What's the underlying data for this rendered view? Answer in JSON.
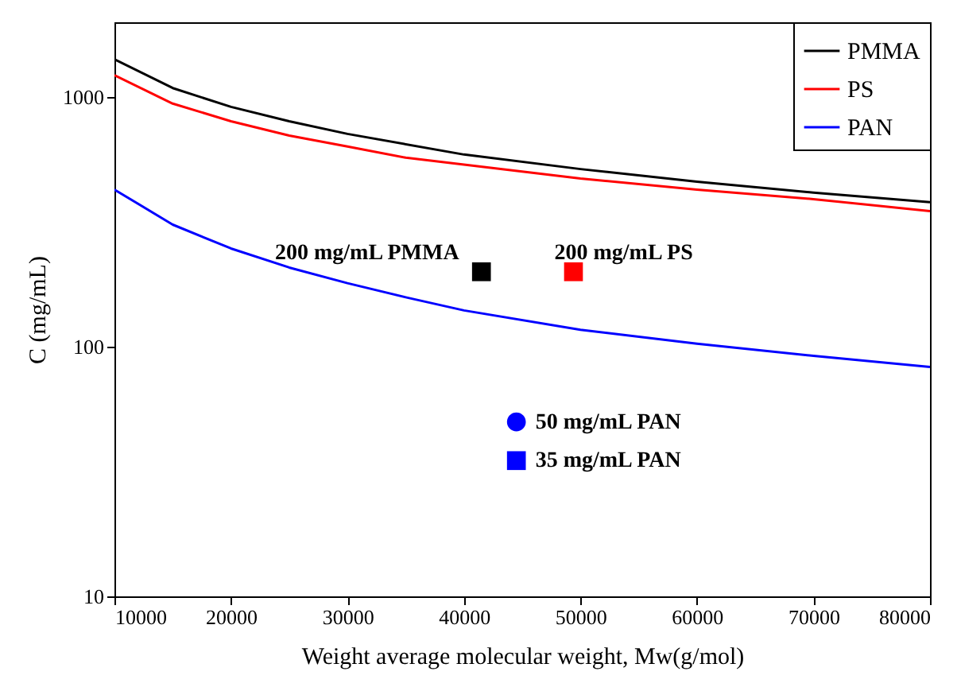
{
  "chart_data": {
    "type": "line",
    "xlabel": "Weight average molecular weight, Mw(g/mol)",
    "ylabel": "C (mg/mL)",
    "xlim": [
      10000,
      80000
    ],
    "xticks": [
      10000,
      20000,
      30000,
      40000,
      50000,
      60000,
      70000,
      80000
    ],
    "ylim": [
      10,
      2000
    ],
    "yticks": [
      10,
      100,
      1000
    ],
    "log": true,
    "legend": "top right",
    "series": [
      {
        "name": "PMMA",
        "color": "#000000",
        "x": [
          10000,
          15000,
          20000,
          25000,
          30000,
          40000,
          50000,
          60000,
          70000,
          80000
        ],
        "values": [
          1420,
          1090,
          916,
          802,
          714,
          590,
          516,
          459,
          415,
          380
        ]
      },
      {
        "name": "PS",
        "color": "#ff0000",
        "x": [
          10000,
          15000,
          20000,
          25000,
          30000,
          35000,
          50000,
          60000,
          70000,
          80000
        ],
        "values": [
          1227,
          944,
          802,
          703,
          635,
          573,
          473,
          427,
          391,
          350
        ]
      },
      {
        "name": "PAN",
        "color": "#0000ff",
        "x": [
          10000,
          15000,
          20000,
          25000,
          30000,
          35000,
          40000,
          50000,
          60000,
          70000,
          80000
        ],
        "values": [
          427,
          309,
          248,
          208,
          180,
          158,
          140,
          117,
          103,
          92,
          83
        ]
      },
      {
        "type": "scatter",
        "marker": "square",
        "color": "#000000",
        "x": [
          41500
        ],
        "values": [
          200
        ]
      },
      {
        "type": "scatter",
        "marker": "square",
        "color": "#ff0000",
        "x": [
          49400
        ],
        "values": [
          200
        ]
      },
      {
        "type": "scatter",
        "marker": "circle",
        "color": "#0000ff",
        "x": [
          44500
        ],
        "values": [
          50
        ]
      },
      {
        "type": "scatter",
        "marker": "square",
        "color": "#0000ff",
        "x": [
          44500
        ],
        "values": [
          35
        ]
      }
    ],
    "annotations": [
      {
        "text": "200 mg/mL PMMA",
        "x": 41500,
        "y": 200
      },
      {
        "text": "200 mg/mL PS",
        "x": 49400,
        "y": 200
      },
      {
        "text": "50 mg/mL PAN",
        "x": 44500,
        "y": 50
      },
      {
        "text": "35 mg/mL PAN",
        "x": 44500,
        "y": 35
      }
    ]
  }
}
